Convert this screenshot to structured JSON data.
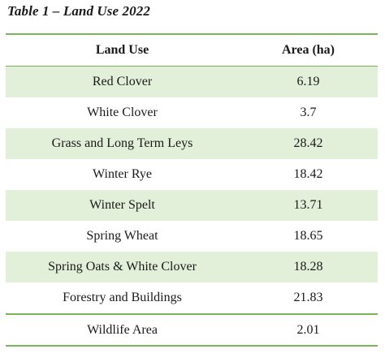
{
  "caption": "Table 1 – Land Use 2022",
  "columns": {
    "land_use": "Land Use",
    "area": "Area (ha)"
  },
  "rows": [
    {
      "land_use": "Red Clover",
      "area": "6.19"
    },
    {
      "land_use": "White Clover",
      "area": "3.7"
    },
    {
      "land_use": "Grass and Long Term Leys",
      "area": "28.42"
    },
    {
      "land_use": "Winter Rye",
      "area": "18.42"
    },
    {
      "land_use": "Winter Spelt",
      "area": "13.71"
    },
    {
      "land_use": "Spring Wheat",
      "area": "18.65"
    },
    {
      "land_use": "Spring Oats & White Clover",
      "area": "18.28"
    },
    {
      "land_use": "Forestry and Buildings",
      "area": "21.83"
    }
  ],
  "total_row": {
    "land_use": "Wildlife Area",
    "area": "2.01"
  },
  "colors": {
    "rule": "#7ab55c",
    "shade": "#e2efd9"
  }
}
